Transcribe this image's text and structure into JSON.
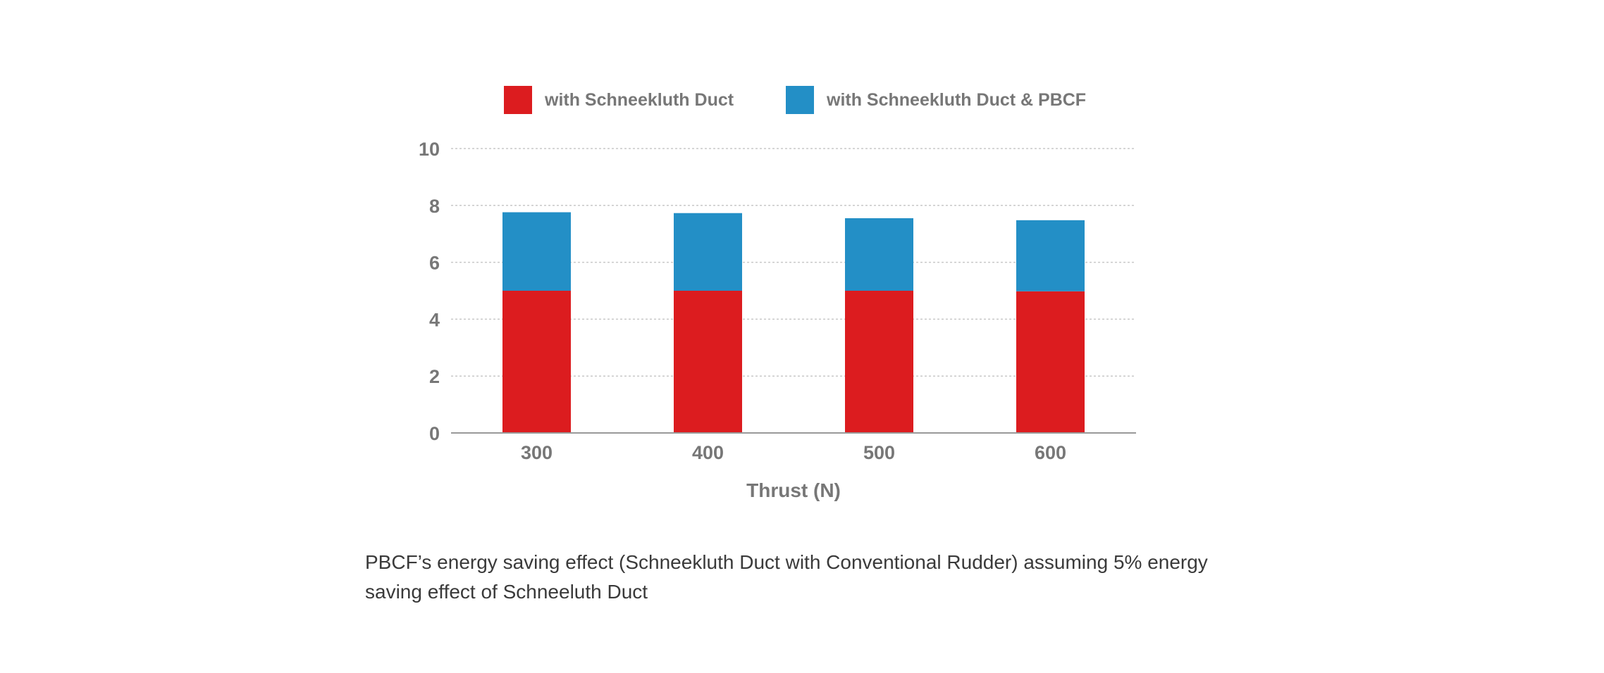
{
  "chart_data": {
    "type": "bar",
    "stacked": true,
    "categories": [
      "300",
      "400",
      "500",
      "600"
    ],
    "series": [
      {
        "name": "with Schneekluth Duct",
        "color": "#dc1c1f",
        "values": [
          5.0,
          5.0,
          5.0,
          4.98
        ]
      },
      {
        "name": "with Schneekluth Duct & PBCF",
        "color": "#238fc6",
        "values": [
          2.76,
          2.73,
          2.55,
          2.5
        ]
      }
    ],
    "title": "",
    "xlabel": "Thrust (N)",
    "ylabel": "",
    "ylim": [
      0,
      10
    ],
    "yticks": [
      0,
      2,
      4,
      6,
      8,
      10
    ],
    "grid": true,
    "legend_position": "top-center"
  },
  "caption": "PBCF’s energy saving effect (Schneekluth Duct with Conventional Rudder) assuming 5% energy saving effect of Schneeluth Duct"
}
